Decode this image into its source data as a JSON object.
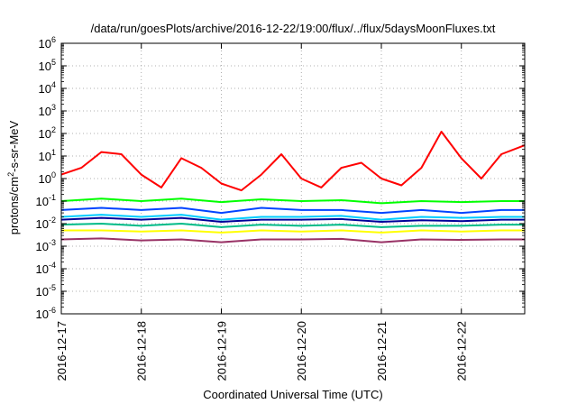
{
  "chart_data": {
    "type": "line",
    "title": "/data/run/goesPlots/archive/2016-12-22/19:00/flux/../flux/5daysMoonFluxes.txt",
    "xlabel": "Coordinated Universal Time (UTC)",
    "ylabel": {
      "base": "protons/cm",
      "sup": "2",
      "rest": "-s-sr-MeV"
    },
    "xlim": [
      "2016-12-17T00:00",
      "2016-12-22T19:00"
    ],
    "ylim": [
      1e-06,
      1000000.0
    ],
    "yscale": "log",
    "grid": true,
    "x_ticks": [
      "2016-12-17",
      "2016-12-18",
      "2016-12-19",
      "2016-12-20",
      "2016-12-21",
      "2016-12-22"
    ],
    "y_ticks": [
      {
        "base": "10",
        "exp": "-6",
        "value": 1e-06
      },
      {
        "base": "10",
        "exp": "-5",
        "value": 1e-05
      },
      {
        "base": "10",
        "exp": "-4",
        "value": 0.0001
      },
      {
        "base": "10",
        "exp": "-3",
        "value": 0.001
      },
      {
        "base": "10",
        "exp": "-2",
        "value": 0.01
      },
      {
        "base": "10",
        "exp": "-1",
        "value": 0.1
      },
      {
        "base": "10",
        "exp": "0",
        "value": 1
      },
      {
        "base": "10",
        "exp": "1",
        "value": 10
      },
      {
        "base": "10",
        "exp": "2",
        "value": 100
      },
      {
        "base": "10",
        "exp": "3",
        "value": 1000
      },
      {
        "base": "10",
        "exp": "4",
        "value": 10000
      },
      {
        "base": "10",
        "exp": "5",
        "value": 100000
      },
      {
        "base": "10",
        "exp": "6",
        "value": 1000000
      }
    ],
    "series": [
      {
        "color": "#ff0000",
        "x": [
          "2016-12-17T00:00",
          "2016-12-17T06:00",
          "2016-12-17T12:00",
          "2016-12-17T18:00",
          "2016-12-18T00:00",
          "2016-12-18T06:00",
          "2016-12-18T12:00",
          "2016-12-18T18:00",
          "2016-12-19T00:00",
          "2016-12-19T06:00",
          "2016-12-19T12:00",
          "2016-12-19T18:00",
          "2016-12-20T00:00",
          "2016-12-20T06:00",
          "2016-12-20T12:00",
          "2016-12-20T18:00",
          "2016-12-21T00:00",
          "2016-12-21T06:00",
          "2016-12-21T12:00",
          "2016-12-21T18:00",
          "2016-12-22T00:00",
          "2016-12-22T06:00",
          "2016-12-22T12:00",
          "2016-12-22T19:00"
        ],
        "values": [
          1.5,
          3,
          15,
          12,
          1.5,
          0.4,
          8,
          3,
          0.6,
          0.3,
          1.5,
          12,
          1,
          0.4,
          3,
          5,
          1,
          0.5,
          3,
          120,
          8,
          1,
          12,
          30
        ]
      },
      {
        "color": "#00ff00",
        "x": [
          "2016-12-17T00:00",
          "2016-12-17T12:00",
          "2016-12-18T00:00",
          "2016-12-18T12:00",
          "2016-12-19T00:00",
          "2016-12-19T12:00",
          "2016-12-20T00:00",
          "2016-12-20T12:00",
          "2016-12-21T00:00",
          "2016-12-21T12:00",
          "2016-12-22T00:00",
          "2016-12-22T12:00",
          "2016-12-22T19:00"
        ],
        "values": [
          0.1,
          0.13,
          0.1,
          0.13,
          0.09,
          0.12,
          0.1,
          0.11,
          0.08,
          0.1,
          0.09,
          0.1,
          0.1
        ]
      },
      {
        "color": "#0044ff",
        "x": [
          "2016-12-17T00:00",
          "2016-12-17T12:00",
          "2016-12-18T00:00",
          "2016-12-18T12:00",
          "2016-12-19T00:00",
          "2016-12-19T12:00",
          "2016-12-20T00:00",
          "2016-12-20T12:00",
          "2016-12-21T00:00",
          "2016-12-21T12:00",
          "2016-12-22T00:00",
          "2016-12-22T12:00",
          "2016-12-22T19:00"
        ],
        "values": [
          0.04,
          0.05,
          0.04,
          0.05,
          0.03,
          0.05,
          0.04,
          0.04,
          0.03,
          0.04,
          0.03,
          0.04,
          0.04
        ]
      },
      {
        "color": "#00ccff",
        "x": [
          "2016-12-17T00:00",
          "2016-12-17T12:00",
          "2016-12-18T00:00",
          "2016-12-18T12:00",
          "2016-12-19T00:00",
          "2016-12-19T12:00",
          "2016-12-20T00:00",
          "2016-12-20T12:00",
          "2016-12-21T00:00",
          "2016-12-21T12:00",
          "2016-12-22T00:00",
          "2016-12-22T12:00",
          "2016-12-22T19:00"
        ],
        "values": [
          0.02,
          0.025,
          0.02,
          0.025,
          0.015,
          0.02,
          0.02,
          0.022,
          0.015,
          0.02,
          0.018,
          0.02,
          0.02
        ]
      },
      {
        "color": "#000099",
        "x": [
          "2016-12-17T00:00",
          "2016-12-17T12:00",
          "2016-12-18T00:00",
          "2016-12-18T12:00",
          "2016-12-19T00:00",
          "2016-12-19T12:00",
          "2016-12-20T00:00",
          "2016-12-20T12:00",
          "2016-12-21T00:00",
          "2016-12-21T12:00",
          "2016-12-22T00:00",
          "2016-12-22T12:00",
          "2016-12-22T19:00"
        ],
        "values": [
          0.015,
          0.018,
          0.015,
          0.018,
          0.012,
          0.015,
          0.015,
          0.016,
          0.012,
          0.014,
          0.013,
          0.015,
          0.015
        ]
      },
      {
        "color": "#00bb88",
        "x": [
          "2016-12-17T00:00",
          "2016-12-17T12:00",
          "2016-12-18T00:00",
          "2016-12-18T12:00",
          "2016-12-19T00:00",
          "2016-12-19T12:00",
          "2016-12-20T00:00",
          "2016-12-20T12:00",
          "2016-12-21T00:00",
          "2016-12-21T12:00",
          "2016-12-22T00:00",
          "2016-12-22T12:00",
          "2016-12-22T19:00"
        ],
        "values": [
          0.009,
          0.01,
          0.008,
          0.01,
          0.007,
          0.009,
          0.008,
          0.009,
          0.007,
          0.008,
          0.008,
          0.009,
          0.009
        ]
      },
      {
        "color": "#ffff00",
        "x": [
          "2016-12-17T00:00",
          "2016-12-17T12:00",
          "2016-12-18T00:00",
          "2016-12-18T12:00",
          "2016-12-19T00:00",
          "2016-12-19T12:00",
          "2016-12-20T00:00",
          "2016-12-20T12:00",
          "2016-12-21T00:00",
          "2016-12-21T12:00",
          "2016-12-22T00:00",
          "2016-12-22T12:00",
          "2016-12-22T19:00"
        ],
        "values": [
          0.005,
          0.005,
          0.0045,
          0.005,
          0.004,
          0.005,
          0.0045,
          0.005,
          0.004,
          0.005,
          0.0045,
          0.005,
          0.005
        ]
      },
      {
        "color": "#993366",
        "x": [
          "2016-12-17T00:00",
          "2016-12-17T12:00",
          "2016-12-18T00:00",
          "2016-12-18T12:00",
          "2016-12-19T00:00",
          "2016-12-19T12:00",
          "2016-12-20T00:00",
          "2016-12-20T12:00",
          "2016-12-21T00:00",
          "2016-12-21T12:00",
          "2016-12-22T00:00",
          "2016-12-22T12:00",
          "2016-12-22T19:00"
        ],
        "values": [
          0.002,
          0.0022,
          0.0018,
          0.002,
          0.0015,
          0.002,
          0.002,
          0.0021,
          0.0015,
          0.002,
          0.0019,
          0.002,
          0.002
        ]
      }
    ]
  }
}
